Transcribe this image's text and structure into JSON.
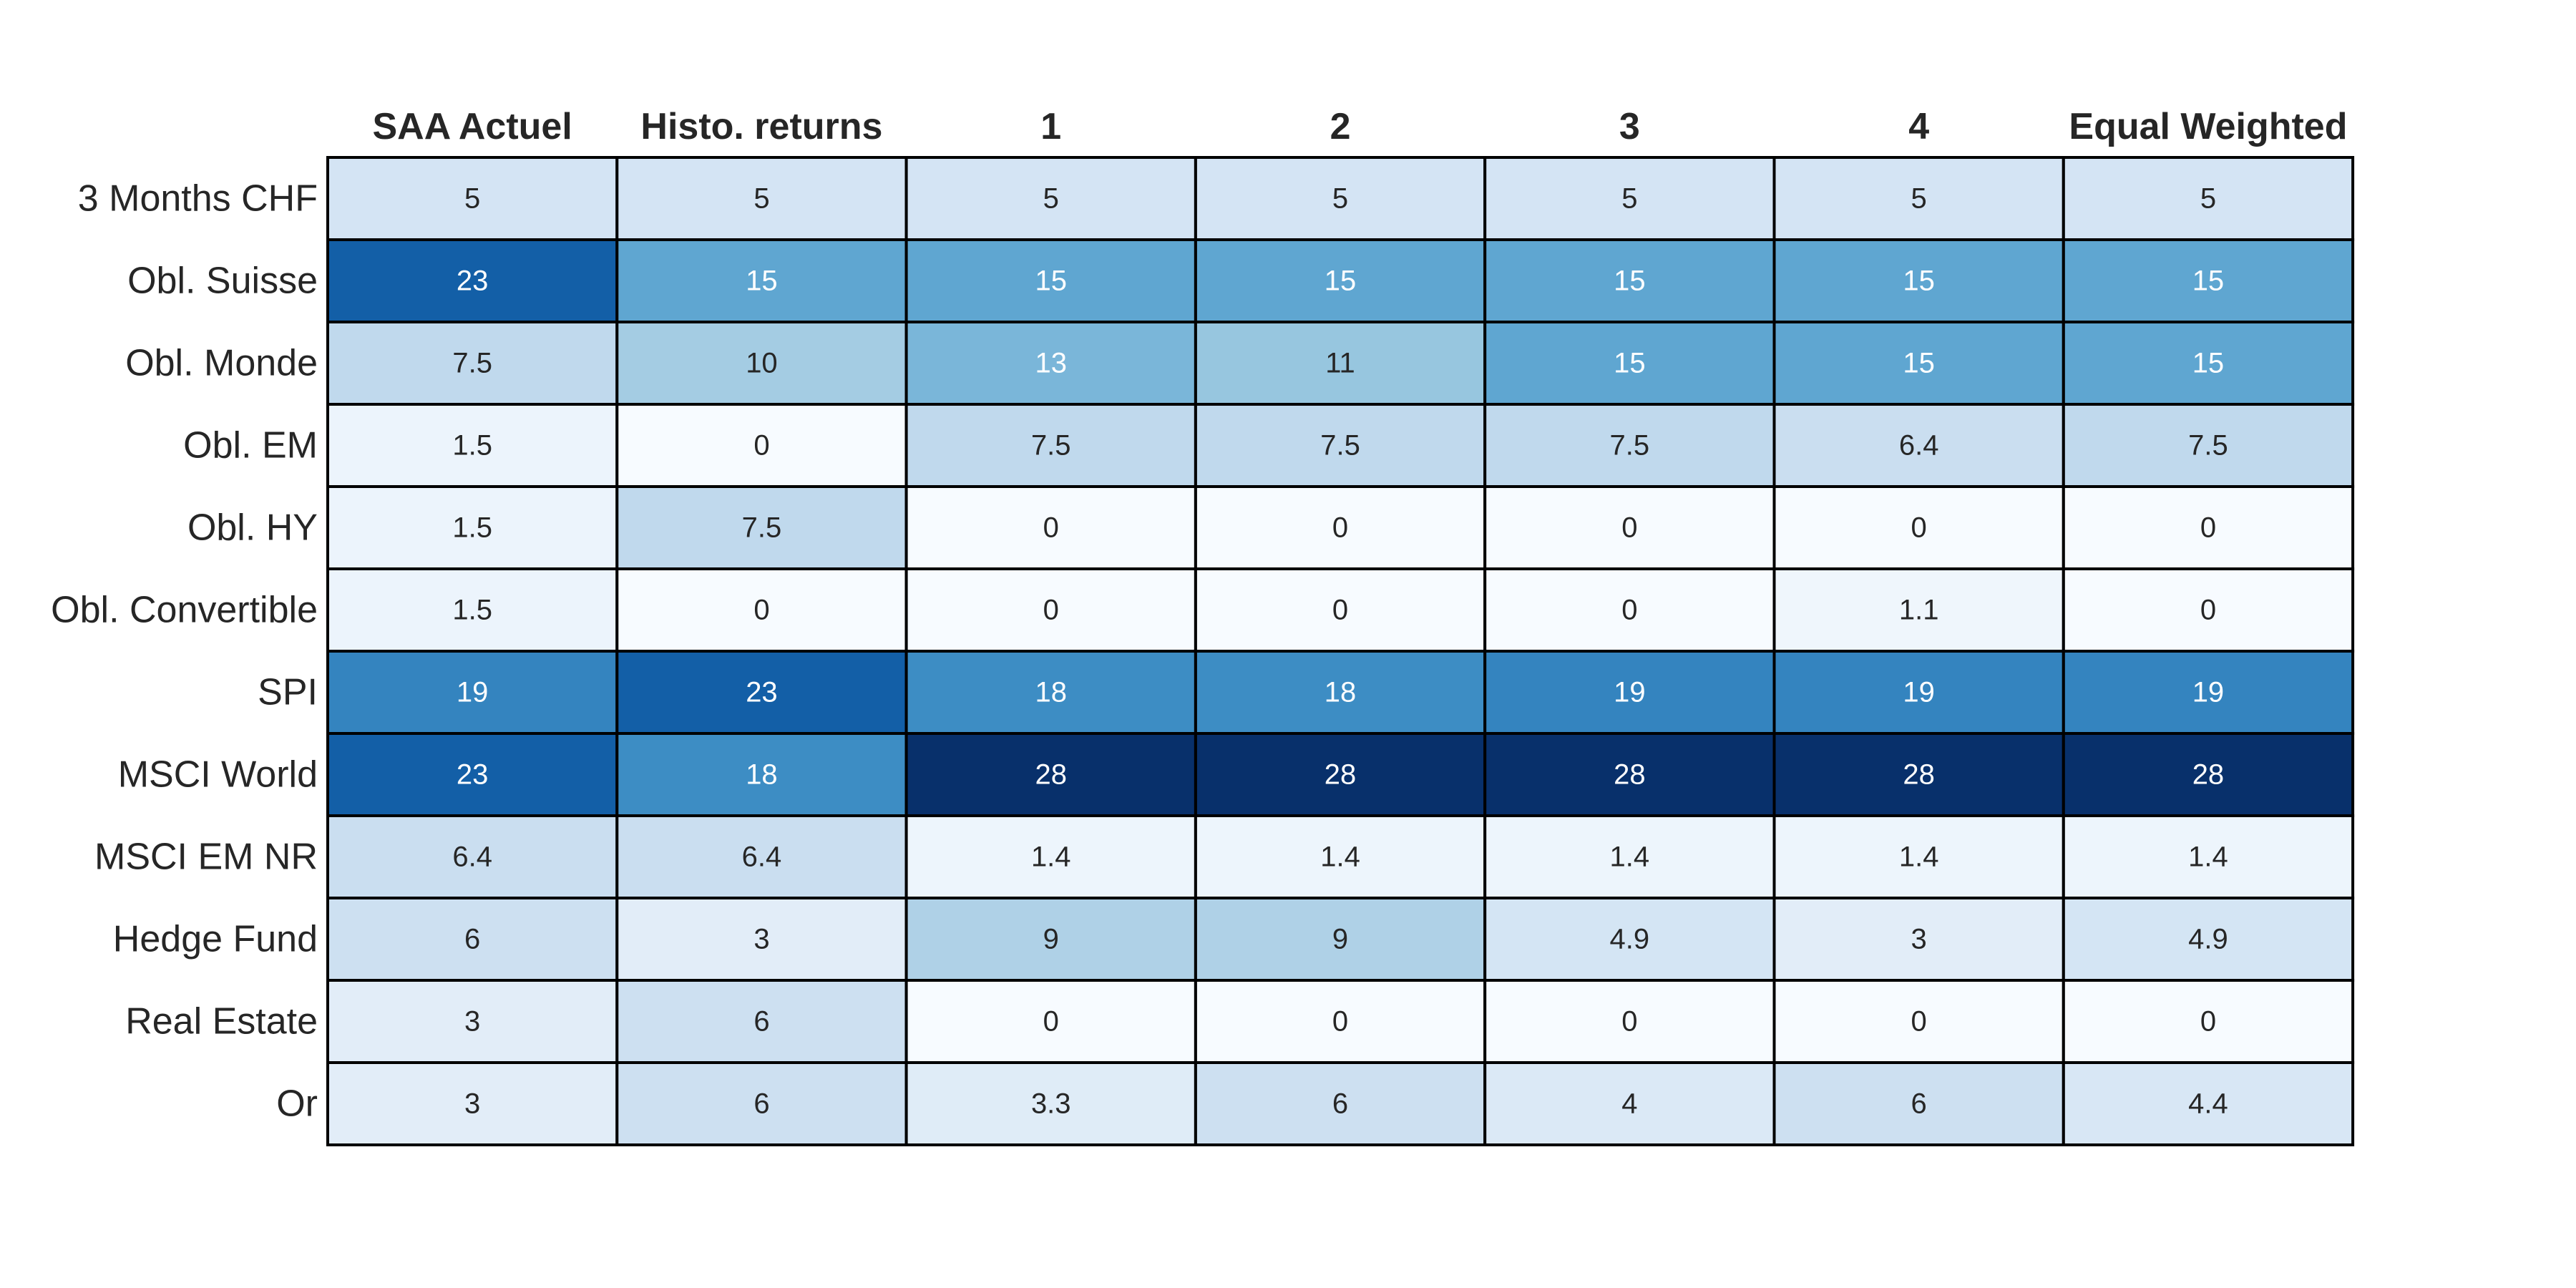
{
  "chart_data": {
    "type": "heatmap",
    "title": "",
    "xlabel": "",
    "ylabel": "",
    "columns": [
      "SAA Actuel",
      "Histo. returns",
      "1",
      "2",
      "3",
      "4",
      "Equal Weighted"
    ],
    "rows": [
      "3 Months CHF",
      "Obl. Suisse",
      "Obl. Monde",
      "Obl. EM",
      "Obl. HY",
      "Obl. Convertible",
      "SPI",
      "MSCI World",
      "MSCI EM NR",
      "Hedge Fund",
      "Real Estate",
      "Or"
    ],
    "values": [
      [
        5,
        5,
        5,
        5,
        5,
        5,
        5
      ],
      [
        23,
        15,
        15,
        15,
        15,
        15,
        15
      ],
      [
        7.5,
        10,
        13,
        11,
        15,
        15,
        15
      ],
      [
        1.5,
        0,
        7.5,
        7.5,
        7.5,
        6.4,
        7.5
      ],
      [
        1.5,
        7.5,
        0,
        0,
        0,
        0,
        0
      ],
      [
        1.5,
        0,
        0,
        0,
        0,
        1.1,
        0
      ],
      [
        19,
        23,
        18,
        18,
        19,
        19,
        19
      ],
      [
        23,
        18,
        28,
        28,
        28,
        28,
        28
      ],
      [
        6.4,
        6.4,
        1.4,
        1.4,
        1.4,
        1.4,
        1.4
      ],
      [
        6,
        3,
        9,
        9,
        4.9,
        3,
        4.9
      ],
      [
        3,
        6,
        0,
        0,
        0,
        0,
        0
      ],
      [
        3,
        6,
        3.3,
        6,
        4,
        6,
        4.4
      ]
    ],
    "value_range": [
      0,
      28
    ],
    "colormap": "Blues",
    "colors": {
      "cell_border": "#000000",
      "dark_text": "#262626",
      "light_text": "#ffffff",
      "label_text": "#262626"
    },
    "legend": "none",
    "grid": false
  }
}
